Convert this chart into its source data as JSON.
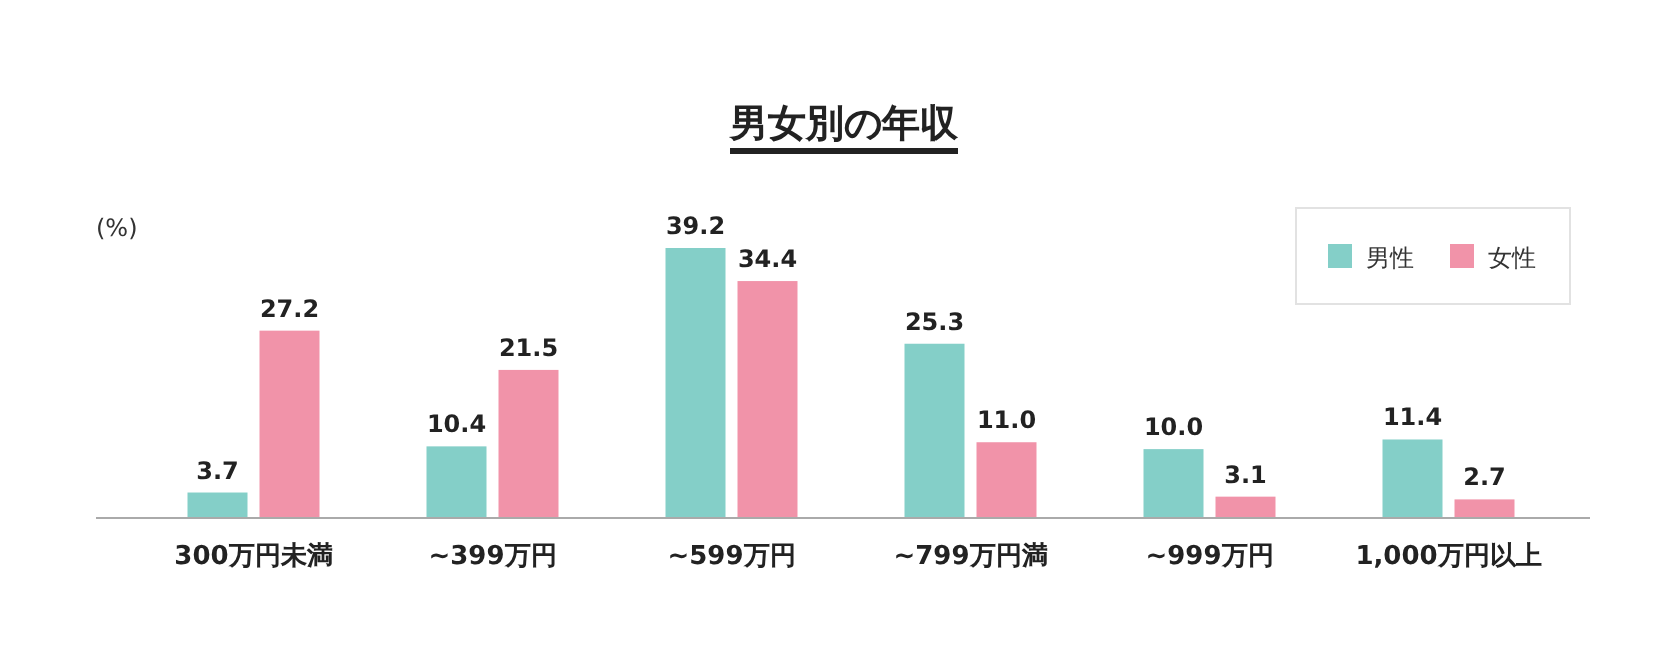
{
  "chart_data": {
    "type": "bar",
    "title": "男女別の年収",
    "ylabel": "(%)",
    "categories": [
      "300万円未満",
      "~399万円",
      "~599万円",
      "~799万円満",
      "~999万円",
      "1,000万円以上"
    ],
    "series": [
      {
        "name": "男性",
        "color": "#84cfc8",
        "values": [
          3.7,
          10.4,
          39.2,
          25.3,
          10.0,
          11.4
        ],
        "value_labels": [
          "3.7",
          "10.4",
          "39.2",
          "25.3",
          "10.0",
          "11.4"
        ]
      },
      {
        "name": "女性",
        "color": "#f193a9",
        "values": [
          27.2,
          21.5,
          34.4,
          11.0,
          3.1,
          2.7
        ],
        "value_labels": [
          "27.2",
          "21.5",
          "34.4",
          "11.0",
          "3.1",
          "2.7"
        ]
      }
    ],
    "legend": "top right"
  }
}
